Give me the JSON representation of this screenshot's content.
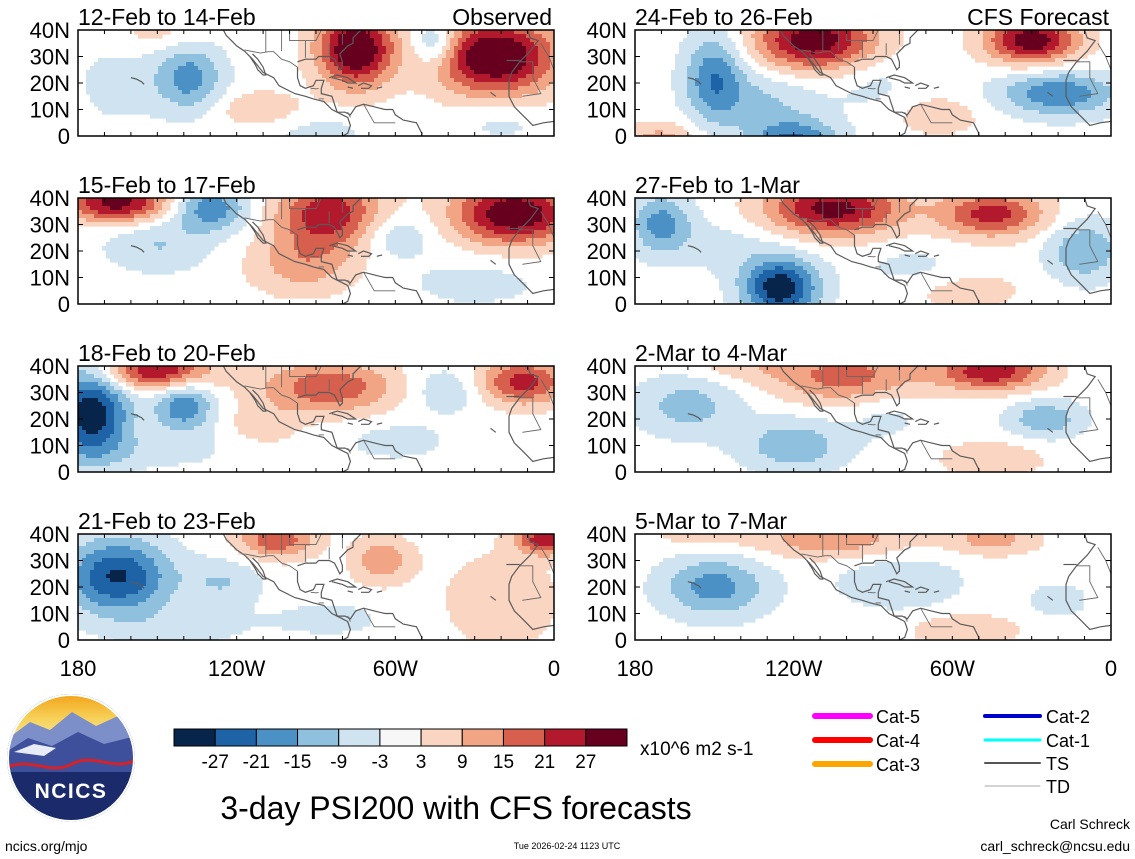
{
  "chart_data": {
    "type": "heatmap",
    "title": "3-day PSI200 with CFS forecasts",
    "variable": "PSI200",
    "units": "x10^6 m2 s-1",
    "x_ticks": [
      "180",
      "120W",
      "60W",
      "0"
    ],
    "y_ticks": [
      "40N",
      "30N",
      "20N",
      "10N",
      "0"
    ],
    "xlim": [
      -180,
      0
    ],
    "ylim": [
      0,
      40
    ],
    "colorbar": {
      "ticks": [
        "-27",
        "-21",
        "-15",
        "-9",
        "-3",
        "3",
        "9",
        "15",
        "21",
        "27"
      ],
      "colors": [
        "#07244a",
        "#1f63a7",
        "#4b91c5",
        "#8fc1de",
        "#cfe3f0",
        "#f7f7f7",
        "#fad6c2",
        "#f1a585",
        "#d6604d",
        "#b3192c",
        "#67001f"
      ]
    },
    "panels": [
      {
        "period": "12-Feb to 14-Feb",
        "source": "Observed",
        "column": 0,
        "row": 0,
        "blobs": [
          [
            -75,
            33,
            10,
            10,
            36
          ],
          [
            -22,
            30,
            16,
            10,
            36
          ],
          [
            -138,
            22,
            9,
            9,
            -18
          ],
          [
            -45,
            35,
            6,
            6,
            -15
          ],
          [
            -112,
            10,
            12,
            5,
            8
          ],
          [
            -90,
            2,
            16,
            5,
            -5
          ],
          [
            -20,
            5,
            12,
            5,
            -5
          ],
          [
            -165,
            20,
            12,
            12,
            -5
          ],
          [
            -150,
            40,
            12,
            6,
            6
          ]
        ]
      },
      {
        "period": "15-Feb to 17-Feb",
        "source": "Observed",
        "column": 0,
        "row": 1,
        "blobs": [
          [
            -165,
            38,
            14,
            5,
            30
          ],
          [
            -130,
            36,
            10,
            6,
            -20
          ],
          [
            -85,
            34,
            14,
            9,
            26
          ],
          [
            -15,
            34,
            16,
            8,
            34
          ],
          [
            -60,
            26,
            10,
            6,
            -9
          ],
          [
            -150,
            22,
            14,
            7,
            -9
          ],
          [
            -95,
            15,
            14,
            8,
            12
          ],
          [
            -30,
            8,
            20,
            7,
            -5
          ]
        ]
      },
      {
        "period": "18-Feb to 20-Feb",
        "source": "Observed",
        "column": 0,
        "row": 2,
        "blobs": [
          [
            -175,
            22,
            10,
            12,
            -32
          ],
          [
            -140,
            25,
            8,
            7,
            -20
          ],
          [
            -150,
            38,
            14,
            5,
            28
          ],
          [
            -85,
            32,
            18,
            7,
            20
          ],
          [
            -40,
            31,
            10,
            6,
            -9
          ],
          [
            -12,
            34,
            12,
            6,
            24
          ],
          [
            -60,
            12,
            16,
            6,
            -5
          ],
          [
            -150,
            8,
            20,
            5,
            -5
          ],
          [
            -110,
            18,
            10,
            6,
            6
          ]
        ]
      },
      {
        "period": "21-Feb to 23-Feb",
        "source": "Observed",
        "column": 0,
        "row": 3,
        "blobs": [
          [
            -165,
            24,
            14,
            10,
            -28
          ],
          [
            -125,
            22,
            10,
            6,
            -9
          ],
          [
            -105,
            38,
            10,
            5,
            20
          ],
          [
            -65,
            30,
            8,
            6,
            14
          ],
          [
            -3,
            38,
            8,
            4,
            26
          ],
          [
            -20,
            15,
            14,
            12,
            9
          ],
          [
            -140,
            5,
            20,
            6,
            -5
          ],
          [
            -85,
            8,
            16,
            5,
            -5
          ]
        ]
      },
      {
        "period": "24-Feb to 26-Feb",
        "source": "CFS Forecast",
        "column": 1,
        "row": 0,
        "blobs": [
          [
            -150,
            22,
            8,
            12,
            -20
          ],
          [
            -112,
            36,
            16,
            8,
            32
          ],
          [
            -30,
            36,
            12,
            6,
            32
          ],
          [
            -20,
            16,
            16,
            6,
            -20
          ],
          [
            -130,
            14,
            14,
            8,
            -9
          ],
          [
            -120,
            -2,
            12,
            6,
            -22
          ],
          [
            -170,
            -2,
            10,
            5,
            12
          ],
          [
            -65,
            8,
            14,
            6,
            6
          ],
          [
            -90,
            20,
            12,
            8,
            -5
          ]
        ]
      },
      {
        "period": "27-Feb to 1-Mar",
        "source": "CFS Forecast",
        "column": 1,
        "row": 1,
        "blobs": [
          [
            -105,
            36,
            18,
            7,
            30
          ],
          [
            -45,
            34,
            14,
            6,
            24
          ],
          [
            -125,
            6,
            10,
            8,
            -32
          ],
          [
            -170,
            30,
            8,
            8,
            -18
          ],
          [
            -10,
            20,
            10,
            8,
            -15
          ],
          [
            -145,
            22,
            14,
            8,
            -5
          ],
          [
            -75,
            14,
            14,
            6,
            -5
          ],
          [
            -55,
            5,
            16,
            6,
            6
          ]
        ]
      },
      {
        "period": "2-Mar to 4-Mar",
        "source": "CFS Forecast",
        "column": 1,
        "row": 2,
        "blobs": [
          [
            -100,
            36,
            20,
            7,
            18
          ],
          [
            -45,
            38,
            14,
            5,
            26
          ],
          [
            -160,
            25,
            14,
            8,
            -12
          ],
          [
            -120,
            10,
            14,
            7,
            -14
          ],
          [
            -25,
            20,
            10,
            5,
            -14
          ],
          [
            -45,
            5,
            14,
            5,
            8
          ],
          [
            -85,
            22,
            10,
            7,
            -5
          ],
          [
            -140,
            40,
            14,
            4,
            6
          ]
        ]
      },
      {
        "period": "5-Mar to 7-Mar",
        "source": "CFS Forecast",
        "column": 1,
        "row": 3,
        "blobs": [
          [
            -105,
            38,
            20,
            5,
            14
          ],
          [
            -45,
            38,
            12,
            4,
            12
          ],
          [
            -150,
            20,
            14,
            8,
            -18
          ],
          [
            -80,
            22,
            16,
            7,
            -9
          ],
          [
            -20,
            15,
            10,
            6,
            -5
          ],
          [
            -55,
            4,
            14,
            4,
            9
          ],
          [
            -155,
            40,
            14,
            4,
            6
          ]
        ]
      }
    ]
  },
  "legend": {
    "tracks": [
      {
        "label": "Cat-5",
        "color": "#ff00ff"
      },
      {
        "label": "Cat-4",
        "color": "#ff0000"
      },
      {
        "label": "Cat-3",
        "color": "#ffa500"
      },
      {
        "label": "Cat-2",
        "color": "#0000cd"
      },
      {
        "label": "Cat-1",
        "color": "#00ffff"
      },
      {
        "label": "TS",
        "color": "#555555"
      },
      {
        "label": "TD",
        "color": "#aaaaaa"
      }
    ]
  },
  "logo": {
    "text": "NCICS"
  },
  "footer": {
    "url": "ncics.org/mjo",
    "timestamp": "Tue 2026-02-24 1123 UTC",
    "author": "Carl Schreck",
    "email": "carl_schreck@ncsu.edu"
  }
}
